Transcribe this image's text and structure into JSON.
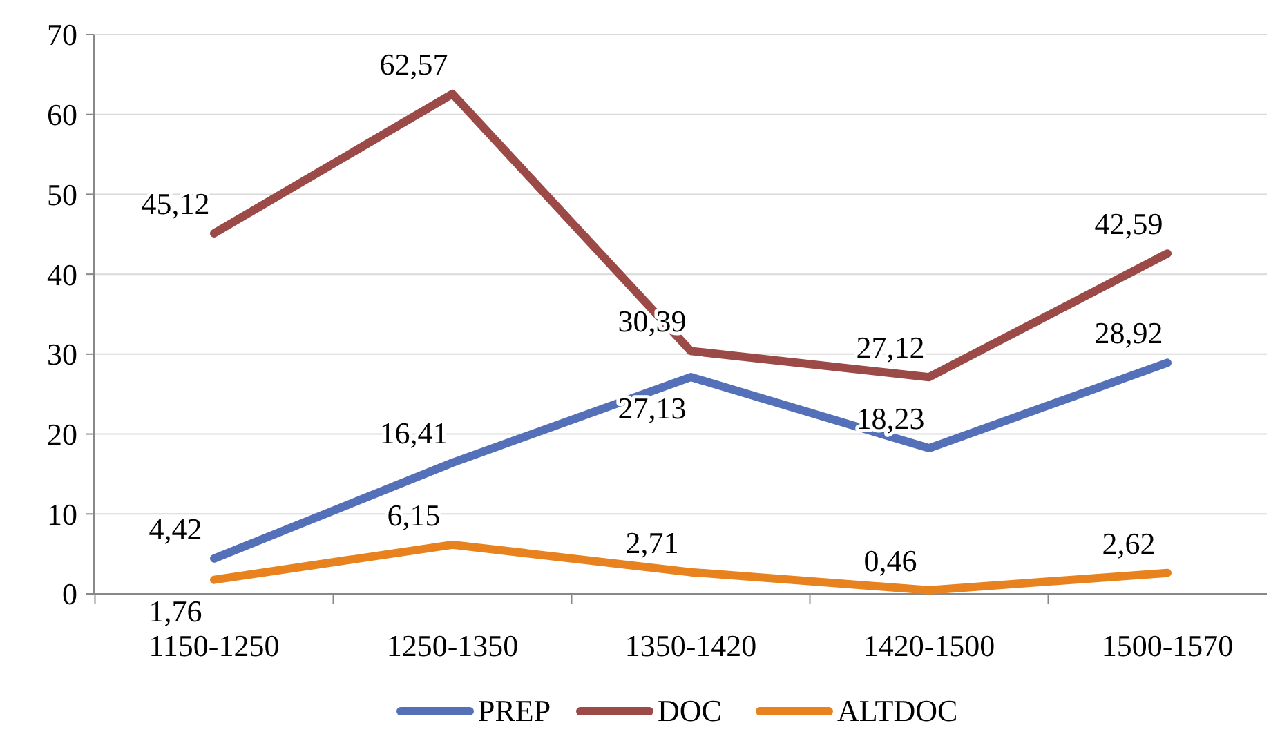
{
  "chart_data": {
    "type": "line",
    "categories": [
      "1150-1250",
      "1250-1350",
      "1350-1420",
      "1420-1500",
      "1500-1570"
    ],
    "series": [
      {
        "name": "PREP",
        "color": "#5470b8",
        "values": [
          4.42,
          16.41,
          27.13,
          18.23,
          28.92
        ],
        "value_labels": [
          "4,42",
          "16,41",
          "27,13",
          "18,23",
          "28,92"
        ]
      },
      {
        "name": "DOC",
        "color": "#9b4a48",
        "values": [
          45.12,
          62.57,
          30.39,
          27.12,
          42.59
        ],
        "value_labels": [
          "45,12",
          "62,57",
          "30,39",
          "27,12",
          "42,59"
        ]
      },
      {
        "name": "ALTDOC",
        "color": "#e8821e",
        "values": [
          1.76,
          6.15,
          2.71,
          0.46,
          2.62
        ],
        "value_labels": [
          "1,76",
          "6,15",
          "2,71",
          "0,46",
          "2,62"
        ]
      }
    ],
    "ylim": [
      0,
      70
    ],
    "yticks": [
      0,
      10,
      20,
      30,
      40,
      50,
      60,
      70
    ],
    "grid": "y",
    "legend": "bottom",
    "marker": "none",
    "line_style": "solid"
  }
}
